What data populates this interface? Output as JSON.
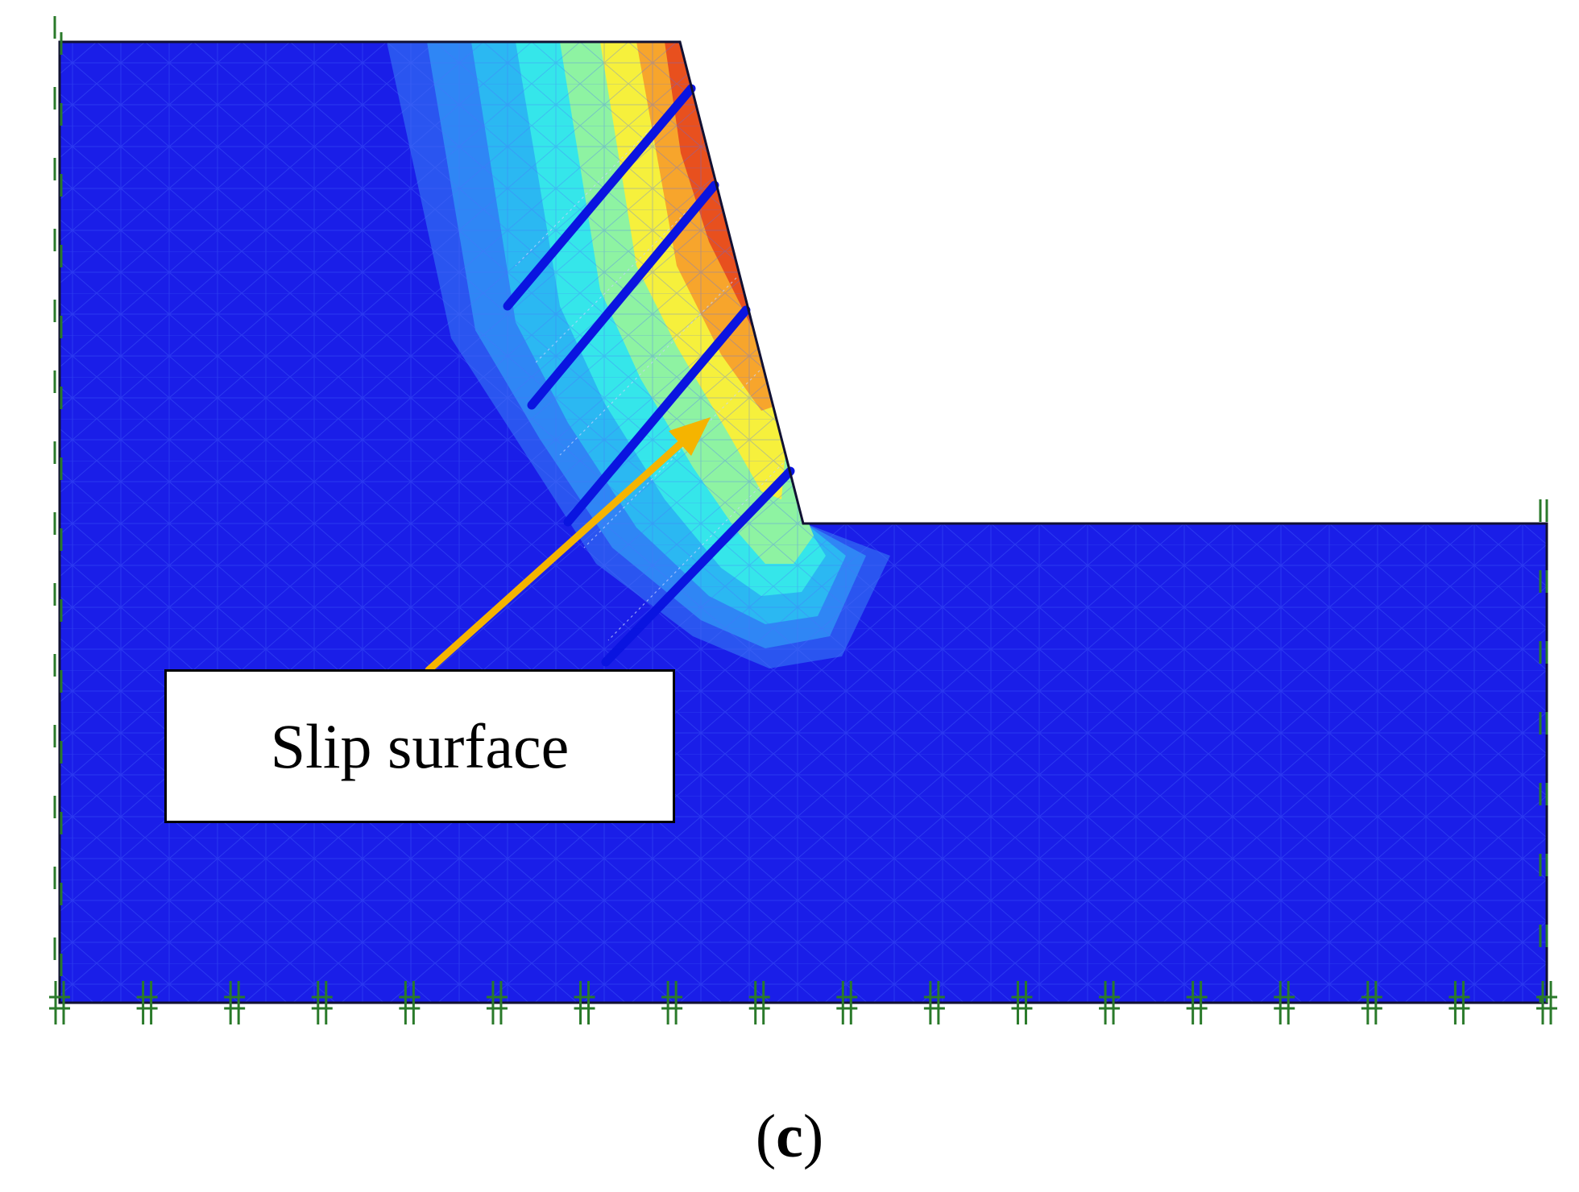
{
  "callout": {
    "label": "Slip surface"
  },
  "caption": {
    "open": "(",
    "letter": "c",
    "close": ")"
  },
  "colors": {
    "background_field": "#1a1ee8",
    "arrow": "#f5b400",
    "anchor": "#0a14e0",
    "boundary_marker": "#2a7a2a",
    "outline": "#111133"
  }
}
